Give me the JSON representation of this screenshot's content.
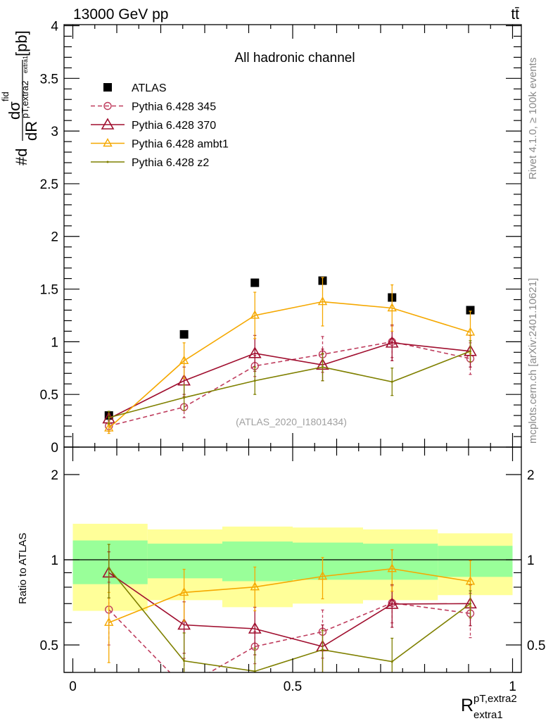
{
  "header": {
    "energy_label": "13000 GeV pp",
    "process_label": "tt̄",
    "side_label_top": "Rivet 4.1.0, ≥ 100k events",
    "side_label_bottom": "mcplots.cern.ch [arXiv:2401.10621]"
  },
  "chart_data": [
    {
      "type": "line",
      "title": "All hadronic channel",
      "watermark": "(ATLAS_2020_I1801434)",
      "ylabel": "#d dσ^fid / dR^{pT,extra2}_{extra1} [pb]",
      "ylabel_parts": {
        "prefix": "#d",
        "num": "dσ",
        "sup": "fid",
        "den": "dR",
        "den_sub": "pT,extra2",
        "den_sub2": "extra1",
        "unit": "[pb]"
      },
      "xlim": [
        -0.02,
        1.02
      ],
      "ylim": [
        0,
        4.01
      ],
      "yticks": [
        "0",
        "0.5",
        "1",
        "1.5",
        "2",
        "2.5",
        "3",
        "3.5",
        "4"
      ],
      "ytick_values": [
        0,
        0.5,
        1,
        1.5,
        2,
        2.5,
        3,
        3.5,
        4
      ],
      "legend_placement": "top-left",
      "x": [
        0.082,
        0.253,
        0.414,
        0.568,
        0.726,
        0.904
      ],
      "bin_edges": [
        0,
        0.17,
        0.34,
        0.5,
        0.66,
        0.83,
        1.0
      ],
      "series": [
        {
          "name": "ATLAS",
          "color": "#000000",
          "marker": "square",
          "line": "none",
          "values": [
            0.3,
            1.07,
            1.56,
            1.58,
            1.42,
            1.3
          ],
          "errors": [
            0.02,
            0.03,
            0.04,
            0.04,
            0.04,
            0.03
          ]
        },
        {
          "name": "Pythia 6.428 345",
          "color": "#bf3d5e",
          "marker": "circle",
          "line": "dashed",
          "values": [
            0.2,
            0.38,
            0.77,
            0.88,
            1.0,
            0.84
          ],
          "errors": [
            0.05,
            0.1,
            0.1,
            0.17,
            0.15,
            0.15
          ]
        },
        {
          "name": "Pythia 6.428 370",
          "color": "#a00f2f",
          "marker": "triangle",
          "line": "solid",
          "values": [
            0.27,
            0.63,
            0.89,
            0.78,
            0.99,
            0.91
          ],
          "errors": [
            0.05,
            0.13,
            0.17,
            0.15,
            0.17,
            0.15
          ]
        },
        {
          "name": "Pythia 6.428 ambt1",
          "color": "#f5a800",
          "marker": "triangle-small",
          "line": "solid",
          "values": [
            0.18,
            0.82,
            1.25,
            1.38,
            1.32,
            1.09
          ],
          "errors": [
            0.05,
            0.17,
            0.22,
            0.23,
            0.22,
            0.2
          ]
        },
        {
          "name": "Pythia 6.428 z2",
          "color": "#7f8000",
          "marker": "dot",
          "line": "solid",
          "values": [
            0.28,
            0.47,
            0.63,
            0.76,
            0.62,
            0.91
          ],
          "errors": [
            0.06,
            0.12,
            0.13,
            0.13,
            0.13,
            0.1
          ]
        }
      ]
    },
    {
      "type": "line",
      "ylabel": "Ratio to ATLAS",
      "xlabel": "R^{pT,extra2}_{extra1}",
      "xlabel_parts": {
        "base": "R",
        "sup": "pT,extra2",
        "sub": "extra1"
      },
      "yscale": "log",
      "ylim": [
        0.4,
        2.5
      ],
      "yticks": [
        "0.5",
        "1",
        "2"
      ],
      "ytick_values": [
        0.5,
        1,
        2
      ],
      "xticks": [
        "0",
        "0.5",
        "1"
      ],
      "xtick_values": [
        0,
        0.5,
        1
      ],
      "band_total": {
        "color": "#ffff99",
        "upper": [
          1.34,
          1.28,
          1.31,
          1.3,
          1.28,
          1.24
        ],
        "lower": [
          0.66,
          0.72,
          0.68,
          0.7,
          0.72,
          0.75
        ]
      },
      "band_stat": {
        "color": "#99ff99",
        "upper": [
          1.17,
          1.14,
          1.16,
          1.15,
          1.14,
          1.12
        ],
        "lower": [
          0.82,
          0.86,
          0.84,
          0.85,
          0.85,
          0.87
        ]
      },
      "ratio_of": "series / ATLAS"
    }
  ]
}
